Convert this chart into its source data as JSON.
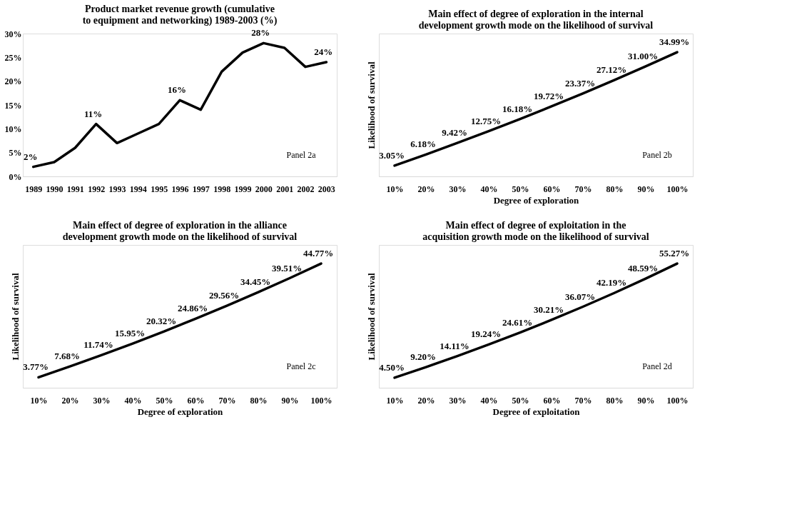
{
  "chart_data": [
    {
      "type": "line",
      "title": "Product market revenue growth (cumulative to equipment and networking) 1989-2003 (%)",
      "categories": [
        "1989",
        "1990",
        "1991",
        "1992",
        "1993",
        "1994",
        "1995",
        "1996",
        "1997",
        "1998",
        "1999",
        "2000",
        "2001",
        "2002",
        "2003"
      ],
      "values": [
        2,
        3,
        6,
        11,
        7,
        9,
        11,
        16,
        14,
        22,
        26,
        28,
        27,
        23,
        24
      ],
      "value_labels": [
        "2%",
        null,
        null,
        "11%",
        null,
        null,
        null,
        "16%",
        null,
        null,
        null,
        "28%",
        null,
        null,
        "24%"
      ],
      "color": "#000000",
      "ylim": [
        0,
        30
      ],
      "yticks": [
        {
          "value": 0,
          "label": "0%"
        },
        {
          "value": 5,
          "label": "5%"
        },
        {
          "value": 10,
          "label": "10%"
        },
        {
          "value": 15,
          "label": "15%"
        },
        {
          "value": 20,
          "label": "20%"
        },
        {
          "value": 25,
          "label": "25%"
        },
        {
          "value": 30,
          "label": "30%"
        }
      ],
      "grid": false,
      "annotations": [
        "Panel 2a"
      ]
    },
    {
      "type": "line",
      "title": "Main effect of degree of exploration in the internal development growth mode on the likelihood of survival",
      "xlabel": "Degree of exploration",
      "ylabel": "Likelihood of survival",
      "categories": [
        "10%",
        "20%",
        "30%",
        "40%",
        "50%",
        "60%",
        "70%",
        "80%",
        "90%",
        "100%"
      ],
      "values": [
        3.05,
        6.18,
        9.42,
        12.75,
        16.18,
        19.72,
        23.37,
        27.12,
        31.0,
        34.99
      ],
      "value_labels": [
        "3.05%",
        "6.18%",
        "9.42%",
        "12.75%",
        "16.18%",
        "19.72%",
        "23.37%",
        "27.12%",
        "31.00%",
        "34.99%"
      ],
      "color": "#000000",
      "tick_labels": "x",
      "grid": false,
      "annotations": [
        "Panel 2b"
      ]
    },
    {
      "type": "line",
      "title": "Main effect of degree of exploration in the alliance development growth mode on the likelihood of survival",
      "xlabel": "Degree of exploration",
      "ylabel": "Likelihood of survival",
      "categories": [
        "10%",
        "20%",
        "30%",
        "40%",
        "50%",
        "60%",
        "70%",
        "80%",
        "90%",
        "100%"
      ],
      "values": [
        3.77,
        7.68,
        11.74,
        15.95,
        20.32,
        24.86,
        29.56,
        34.45,
        39.51,
        44.77
      ],
      "value_labels": [
        "3.77%",
        "7.68%",
        "11.74%",
        "15.95%",
        "20.32%",
        "24.86%",
        "29.56%",
        "34.45%",
        "39.51%",
        "44.77%"
      ],
      "color": "#000000",
      "tick_labels": "x",
      "grid": false,
      "annotations": [
        "Panel 2c"
      ]
    },
    {
      "type": "line",
      "title": "Main effect of degree of exploitation in the acquisition growth mode on the likelihood of survival",
      "xlabel": "Degree of exploitation",
      "ylabel": "Likelihood of survival",
      "categories": [
        "10%",
        "20%",
        "30%",
        "40%",
        "50%",
        "60%",
        "70%",
        "80%",
        "90%",
        "100%"
      ],
      "values": [
        4.5,
        9.2,
        14.11,
        19.24,
        24.61,
        30.21,
        36.07,
        42.19,
        48.59,
        55.27
      ],
      "value_labels": [
        "4.50%",
        "9.20%",
        "14.11%",
        "19.24%",
        "24.61%",
        "30.21%",
        "36.07%",
        "42.19%",
        "48.59%",
        "55.27%"
      ],
      "color": "#000000",
      "tick_labels": "x",
      "grid": false,
      "annotations": [
        "Panel 2d"
      ]
    }
  ]
}
